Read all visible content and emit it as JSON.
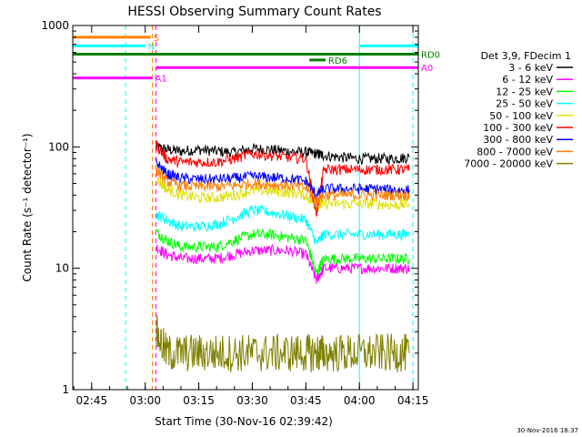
{
  "page": {
    "stamp": "30-Nov-2016 18:37"
  },
  "colors": {
    "background": "#ffffff",
    "axis": "#000000",
    "cyan": "#00ffff",
    "orange": "#ff8000",
    "magenta": "#ff00ff",
    "green": "#007f00",
    "olive": "#808000"
  },
  "chart_data": {
    "type": "line",
    "title": "HESSI Observing Summary Count Rates",
    "xlabel": "Start Time (30-Nov-16 02:39:42)",
    "ylabel": "Count Rate (s⁻¹ detector⁻¹)",
    "y_scale": "log",
    "ylim": [
      1,
      1000
    ],
    "xlim": [
      "02:39:42",
      "04:16:30"
    ],
    "x_ticks": [
      "02:45",
      "03:00",
      "03:15",
      "03:30",
      "03:45",
      "04:00",
      "04:15"
    ],
    "y_ticks": [
      "1",
      "10",
      "100",
      "1000"
    ],
    "grid": false,
    "legend_title": "Det 3,9, FDecim 1",
    "legend_position": "right",
    "series": [
      {
        "name": "3 - 6 keV",
        "color": "#000000",
        "x": [
          "03:03",
          "03:06",
          "03:10",
          "03:15",
          "03:20",
          "03:25",
          "03:30",
          "03:35",
          "03:40",
          "03:45",
          "03:48",
          "03:50",
          "03:55",
          "04:00",
          "04:05",
          "04:10",
          "04:14"
        ],
        "y": [
          100,
          95,
          92,
          95,
          92,
          90,
          97,
          95,
          92,
          90,
          88,
          85,
          82,
          80,
          80,
          80,
          82
        ]
      },
      {
        "name": "6 - 12 keV",
        "color": "#ff00ff",
        "x": [
          "03:03",
          "03:06",
          "03:10",
          "03:15",
          "03:20",
          "03:25",
          "03:30",
          "03:35",
          "03:40",
          "03:45",
          "03:48",
          "03:50",
          "03:55",
          "04:00",
          "04:05",
          "04:10",
          "04:14"
        ],
        "y": [
          15,
          13,
          12,
          12,
          12,
          13,
          14,
          14,
          14,
          13,
          8,
          10,
          10,
          10,
          10,
          10,
          10
        ]
      },
      {
        "name": "12 - 25 keV",
        "color": "#00ff00",
        "x": [
          "03:03",
          "03:06",
          "03:10",
          "03:15",
          "03:20",
          "03:25",
          "03:30",
          "03:35",
          "03:40",
          "03:45",
          "03:48",
          "03:50",
          "03:55",
          "04:00",
          "04:05",
          "04:10",
          "04:14"
        ],
        "y": [
          20,
          17,
          15,
          15,
          15,
          17,
          19,
          19,
          18,
          17,
          9,
          12,
          12,
          12,
          12,
          12,
          12
        ]
      },
      {
        "name": "25 - 50 keV",
        "color": "#00ffff",
        "x": [
          "03:03",
          "03:06",
          "03:10",
          "03:15",
          "03:20",
          "03:25",
          "03:30",
          "03:35",
          "03:40",
          "03:45",
          "03:48",
          "03:50",
          "03:55",
          "04:00",
          "04:05",
          "04:10",
          "04:14"
        ],
        "y": [
          28,
          25,
          22,
          22,
          23,
          26,
          30,
          29,
          27,
          25,
          16,
          19,
          19,
          19,
          19,
          19,
          19
        ]
      },
      {
        "name": "50 - 100 keV",
        "color": "#e0e000",
        "x": [
          "03:03",
          "03:06",
          "03:10",
          "03:15",
          "03:20",
          "03:25",
          "03:30",
          "03:35",
          "03:40",
          "03:45",
          "03:48",
          "03:50",
          "03:55",
          "04:00",
          "04:05",
          "04:10",
          "04:14"
        ],
        "y": [
          55,
          45,
          40,
          38,
          38,
          40,
          44,
          43,
          42,
          40,
          32,
          34,
          34,
          34,
          34,
          33,
          34
        ]
      },
      {
        "name": "100 - 300 keV",
        "color": "#ff0000",
        "x": [
          "03:03",
          "03:06",
          "03:10",
          "03:15",
          "03:20",
          "03:25",
          "03:30",
          "03:35",
          "03:40",
          "03:45",
          "03:48",
          "03:50",
          "03:55",
          "04:00",
          "04:05",
          "04:10",
          "04:14"
        ],
        "y": [
          105,
          80,
          75,
          75,
          75,
          80,
          88,
          85,
          82,
          80,
          28,
          65,
          65,
          65,
          65,
          65,
          65
        ]
      },
      {
        "name": "300 - 800 keV",
        "color": "#0000ff",
        "x": [
          "03:03",
          "03:06",
          "03:10",
          "03:15",
          "03:20",
          "03:25",
          "03:30",
          "03:35",
          "03:40",
          "03:45",
          "03:48",
          "03:50",
          "03:55",
          "04:00",
          "04:05",
          "04:10",
          "04:14"
        ],
        "y": [
          75,
          60,
          55,
          54,
          54,
          55,
          57,
          56,
          55,
          52,
          40,
          45,
          45,
          45,
          45,
          44,
          44
        ]
      },
      {
        "name": "800 - 7000 keV",
        "color": "#ff8000",
        "x": [
          "03:03",
          "03:06",
          "03:10",
          "03:15",
          "03:20",
          "03:25",
          "03:30",
          "03:35",
          "03:40",
          "03:45",
          "03:48",
          "03:50",
          "03:55",
          "04:00",
          "04:05",
          "04:10",
          "04:14"
        ],
        "y": [
          65,
          52,
          48,
          47,
          47,
          48,
          50,
          49,
          48,
          46,
          36,
          40,
          40,
          40,
          40,
          40,
          40
        ]
      },
      {
        "name": "7000 - 20000 keV",
        "color": "#808000",
        "x": [
          "03:03",
          "03:06",
          "03:10",
          "03:15",
          "03:20",
          "03:25",
          "03:30",
          "03:35",
          "03:40",
          "03:45",
          "03:48",
          "03:50",
          "03:55",
          "04:00",
          "04:05",
          "04:10",
          "04:14"
        ],
        "y": [
          3,
          2,
          2,
          2,
          2,
          2,
          2,
          2,
          2,
          2,
          2,
          2,
          2,
          2,
          2,
          2,
          2
        ]
      }
    ],
    "flag_bars": [
      {
        "label": "S",
        "color": "#ff8000",
        "start": "02:39:42",
        "end": "03:01:30",
        "level": 800
      },
      {
        "label": "N",
        "color": "#00ffff",
        "start": "02:39:42",
        "end": "03:00:00",
        "level": 680
      },
      {
        "label": "",
        "color": "#00ffff",
        "start": "04:00:00",
        "end": "04:16:30",
        "level": 680
      },
      {
        "label": "RD0",
        "color": "#007f00",
        "start": "02:39:42",
        "end": "04:16:30",
        "level": 580
      },
      {
        "label": "RD6",
        "color": "#007f00",
        "start": "03:46:00",
        "end": "03:50:30",
        "level": 520
      },
      {
        "label": "A0",
        "color": "#ff00ff",
        "start": "03:03:00",
        "end": "04:16:30",
        "level": 450
      },
      {
        "label": "A1",
        "color": "#ff00ff",
        "start": "02:39:42",
        "end": "03:02:00",
        "level": 370
      }
    ],
    "vertical_lines": [
      {
        "time": "02:39:42",
        "color": "#00ffff",
        "style": "solid"
      },
      {
        "time": "02:54:30",
        "color": "#00ffff",
        "style": "dashed"
      },
      {
        "time": "03:02:00",
        "color": "#ff8000",
        "style": "dashed"
      },
      {
        "time": "03:03:00",
        "color": "#ff00ff",
        "style": "dashed"
      },
      {
        "time": "04:00:00",
        "color": "#00ffff",
        "style": "solid"
      },
      {
        "time": "04:15:00",
        "color": "#00ffff",
        "style": "dashed"
      }
    ]
  }
}
